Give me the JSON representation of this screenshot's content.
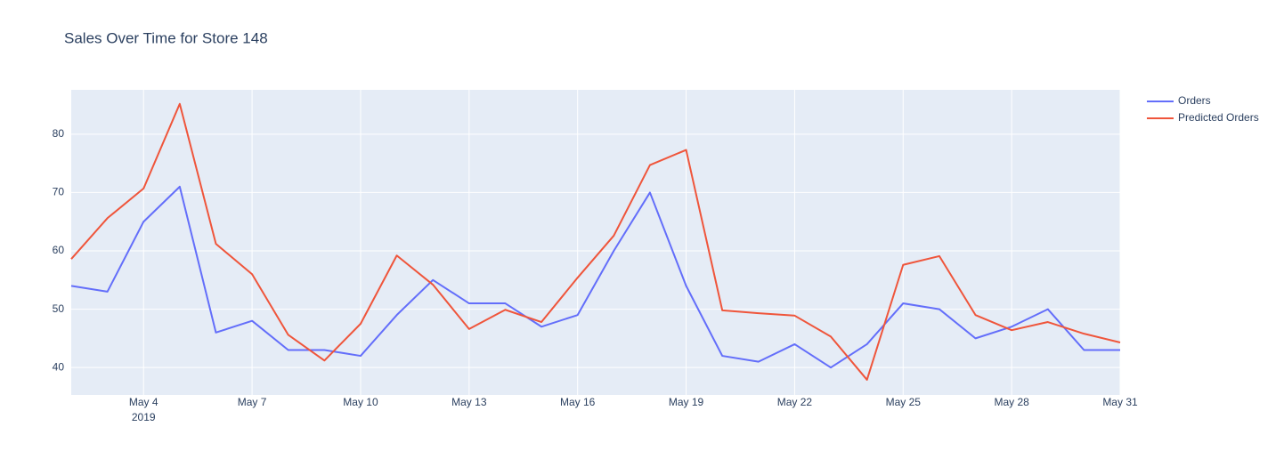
{
  "chart_data": {
    "type": "line",
    "title": "Sales Over Time for Store 148",
    "x": [
      "2019-05-02",
      "2019-05-03",
      "2019-05-04",
      "2019-05-05",
      "2019-05-06",
      "2019-05-07",
      "2019-05-08",
      "2019-05-09",
      "2019-05-10",
      "2019-05-11",
      "2019-05-12",
      "2019-05-13",
      "2019-05-14",
      "2019-05-15",
      "2019-05-16",
      "2019-05-17",
      "2019-05-18",
      "2019-05-19",
      "2019-05-20",
      "2019-05-21",
      "2019-05-22",
      "2019-05-23",
      "2019-05-24",
      "2019-05-25",
      "2019-05-26",
      "2019-05-27",
      "2019-05-28",
      "2019-05-29",
      "2019-05-30",
      "2019-05-31"
    ],
    "series": [
      {
        "name": "Orders",
        "color": "#636efa",
        "values": [
          54,
          53,
          65,
          71,
          46,
          48,
          43,
          43,
          42,
          49,
          55,
          51,
          51,
          47,
          49,
          60,
          70,
          54,
          42,
          41,
          44,
          40,
          44,
          51,
          50,
          45,
          47,
          50,
          43,
          43
        ]
      },
      {
        "name": "Predicted Orders",
        "color": "#ef553b",
        "values": [
          58.6,
          65.6,
          70.7,
          85.2,
          61.2,
          56,
          45.6,
          41.2,
          47.5,
          59.2,
          54.2,
          46.6,
          49.9,
          47.8,
          55.4,
          62.6,
          74.7,
          77.3,
          49.8,
          49.3,
          48.9,
          45.3,
          37.9,
          57.6,
          59.1,
          49,
          46.4,
          47.8,
          45.8,
          44.3
        ]
      }
    ],
    "xlim": [
      "2019-05-02",
      "2019-05-31"
    ],
    "xticks": [
      {
        "value": "2019-05-04",
        "label": "May 4"
      },
      {
        "value": "2019-05-07",
        "label": "May 7"
      },
      {
        "value": "2019-05-10",
        "label": "May 10"
      },
      {
        "value": "2019-05-13",
        "label": "May 13"
      },
      {
        "value": "2019-05-16",
        "label": "May 16"
      },
      {
        "value": "2019-05-19",
        "label": "May 19"
      },
      {
        "value": "2019-05-22",
        "label": "May 22"
      },
      {
        "value": "2019-05-25",
        "label": "May 25"
      },
      {
        "value": "2019-05-28",
        "label": "May 28"
      },
      {
        "value": "2019-05-31",
        "label": "May 31"
      }
    ],
    "x_year_label": "2019",
    "ylim": [
      35.3,
      87.6
    ],
    "yticks": [
      40,
      50,
      60,
      70,
      80
    ],
    "grid": true,
    "legend": "right"
  }
}
